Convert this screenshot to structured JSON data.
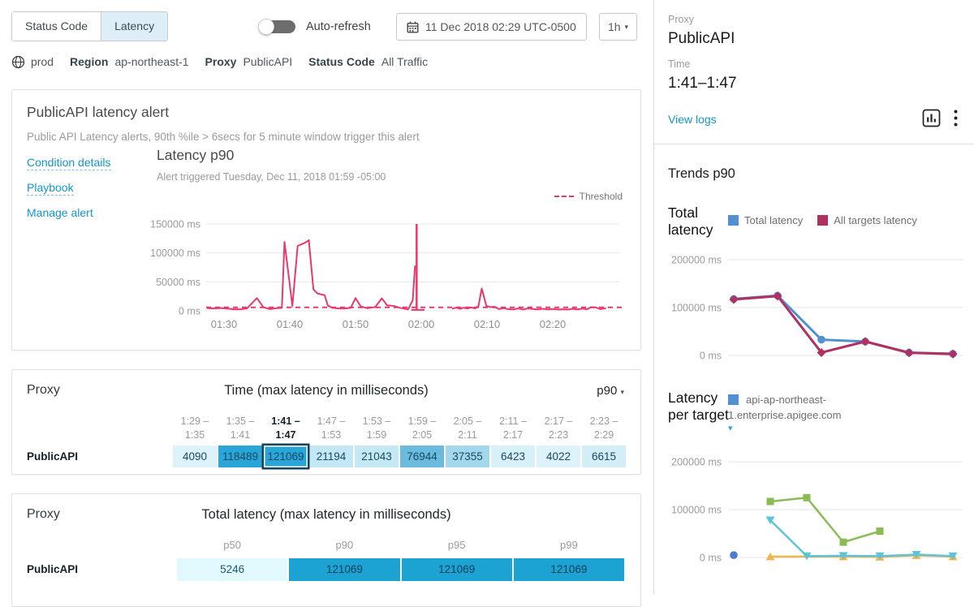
{
  "topbar": {
    "tabs": [
      {
        "label": "Status Code",
        "selected": false
      },
      {
        "label": "Latency",
        "selected": true
      }
    ],
    "auto_refresh_label": "Auto-refresh",
    "datetime": "11 Dec 2018 02:29 UTC-0500",
    "interval": "1h"
  },
  "breadcrumb": {
    "env": "prod",
    "items": [
      {
        "key": "Region",
        "value": "ap-northeast-1"
      },
      {
        "key": "Proxy",
        "value": "PublicAPI"
      },
      {
        "key": "Status Code",
        "value": "All Traffic"
      }
    ]
  },
  "alert_card": {
    "title": "PublicAPI latency alert",
    "description": "Public API Latency alerts, 90th %ile > 6secs for 5 minute window trigger this alert",
    "links": [
      {
        "label": "Condition details",
        "dashed": true
      },
      {
        "label": "Playbook",
        "dashed": true
      },
      {
        "label": "Manage alert",
        "dashed": false
      }
    ],
    "chart_title": "Latency p90",
    "chart_subtitle": "Alert triggered Tuesday, Dec 11, 2018 01:59 -05:00",
    "threshold_label": "Threshold"
  },
  "time_table": {
    "proxy_header": "Proxy",
    "title": "Time (max latency in milliseconds)",
    "percentile": "p90",
    "row_label": "PublicAPI",
    "columns": [
      {
        "top": "1:29 –",
        "bottom": "1:35",
        "value": "4090",
        "bg": "#ddf2fa",
        "selected": false
      },
      {
        "top": "1:35 –",
        "bottom": "1:41",
        "value": "118489",
        "bg": "#2aa5d8",
        "selected": false
      },
      {
        "top": "1:41 –",
        "bottom": "1:47",
        "value": "121069",
        "bg": "#2aa5d8",
        "selected": true
      },
      {
        "top": "1:47 –",
        "bottom": "1:53",
        "value": "21194",
        "bg": "#c3e7f4",
        "selected": false
      },
      {
        "top": "1:53 –",
        "bottom": "1:59",
        "value": "21043",
        "bg": "#c4e8f4",
        "selected": false
      },
      {
        "top": "1:59 –",
        "bottom": "2:05",
        "value": "76944",
        "bg": "#6bbbdf",
        "selected": false
      },
      {
        "top": "2:05 –",
        "bottom": "2:11",
        "value": "37355",
        "bg": "#a3d7eb",
        "selected": false
      },
      {
        "top": "2:11 –",
        "bottom": "2:17",
        "value": "6423",
        "bg": "#d8f0f8",
        "selected": false
      },
      {
        "top": "2:17 –",
        "bottom": "2:23",
        "value": "4022",
        "bg": "#ddf2fa",
        "selected": false
      },
      {
        "top": "2:23 –",
        "bottom": "2:29",
        "value": "6615",
        "bg": "#d3eef7",
        "selected": false
      }
    ]
  },
  "total_table": {
    "proxy_header": "Proxy",
    "title": "Total latency (max latency in milliseconds)",
    "row_label": "PublicAPI",
    "columns": [
      {
        "header": "p50",
        "value": "5246",
        "bg": "#e2f9fd",
        "text": "#1d5a75"
      },
      {
        "header": "p90",
        "value": "121069",
        "bg": "#1ca2d3",
        "text": "#0e3f58"
      },
      {
        "header": "p95",
        "value": "121069",
        "bg": "#1ca2d3",
        "text": "#0e3f58"
      },
      {
        "header": "p99",
        "value": "121069",
        "bg": "#1ca2d3",
        "text": "#0e3f58"
      }
    ]
  },
  "right_panel": {
    "proxy_label": "Proxy",
    "proxy_value": "PublicAPI",
    "time_label": "Time",
    "time_value": "1:41–1:47",
    "view_logs": "View logs",
    "trends_title": "Trends p90",
    "total_latency_label": "Total latency",
    "latency_per_target_label": "Latency per target"
  },
  "chart_data": [
    {
      "id": "alert_latency",
      "type": "line",
      "title": "Latency p90",
      "ylabel": "ms",
      "ylim": [
        0,
        150000
      ],
      "y_ticks": [
        {
          "v": 0,
          "label": "0 ms"
        },
        {
          "v": 50000,
          "label": "50000 ms"
        },
        {
          "v": 100000,
          "label": "100000 ms"
        },
        {
          "v": 150000,
          "label": "150000 ms"
        }
      ],
      "x_ticks": [
        {
          "m": 0,
          "label": "01:30"
        },
        {
          "m": 10,
          "label": "01:40"
        },
        {
          "m": 20,
          "label": "01:50"
        },
        {
          "m": 30,
          "label": "02:00"
        },
        {
          "m": 40,
          "label": "02:10"
        },
        {
          "m": 50,
          "label": "02:20"
        }
      ],
      "series_color": "#e8386d",
      "threshold_ms": 6000,
      "alert_marker_minute": 29.3,
      "segments": [
        [
          [
            -2.5,
            4500
          ],
          [
            -1.5,
            4000
          ],
          [
            -0.5,
            4800
          ],
          [
            0.5,
            3800
          ],
          [
            1.5,
            2600
          ],
          [
            2.5,
            2600
          ],
          [
            3.5,
            4200
          ],
          [
            5,
            22000
          ],
          [
            6,
            6000
          ],
          [
            7,
            3000
          ],
          [
            8,
            4500
          ],
          [
            8.8,
            5000
          ],
          [
            9.2,
            119000
          ],
          [
            10.4,
            8000
          ],
          [
            11.2,
            112000
          ],
          [
            12.4,
            118000
          ],
          [
            12.9,
            122000
          ],
          [
            13.6,
            37000
          ],
          [
            14.2,
            30000
          ],
          [
            15.3,
            27000
          ],
          [
            15.8,
            9000
          ],
          [
            16.5,
            5000
          ],
          [
            17.5,
            4000
          ],
          [
            18.5,
            4000
          ],
          [
            19.3,
            5500
          ],
          [
            20,
            22000
          ],
          [
            20.8,
            7500
          ],
          [
            21.8,
            4500
          ],
          [
            23,
            6500
          ],
          [
            24,
            21500
          ],
          [
            24.8,
            9500
          ],
          [
            25.8,
            8500
          ],
          [
            26.8,
            5000
          ],
          [
            28,
            2500
          ],
          [
            28.7,
            18000
          ],
          [
            29.05,
            77000
          ]
        ],
        [
          [
            34.8,
            3800
          ],
          [
            35.3,
            5500
          ],
          [
            35.9,
            3500
          ],
          [
            36.4,
            5200
          ],
          [
            37,
            4000
          ],
          [
            37.6,
            5800
          ],
          [
            38.2,
            4200
          ],
          [
            38.7,
            8000
          ],
          [
            39.2,
            38500
          ],
          [
            39.9,
            8500
          ],
          [
            40.5,
            6500
          ],
          [
            41.2,
            6800
          ],
          [
            41.8,
            3000
          ],
          [
            42.5,
            4500
          ],
          [
            43.2,
            3000
          ],
          [
            44,
            2500
          ],
          [
            44.8,
            4000
          ],
          [
            45.5,
            2200
          ],
          [
            46.2,
            4200
          ],
          [
            47,
            3000
          ],
          [
            47.8,
            2500
          ],
          [
            48.5,
            3500
          ],
          [
            49.2,
            2400
          ],
          [
            50,
            3200
          ],
          [
            50.8,
            2200
          ],
          [
            51.5,
            2600
          ],
          [
            52.2,
            2200
          ],
          [
            53,
            3400
          ],
          [
            53.8,
            2400
          ],
          [
            54.5,
            3800
          ],
          [
            55.2,
            2600
          ],
          [
            55.8,
            6300
          ],
          [
            56.5,
            6000
          ],
          [
            57.2,
            3000
          ],
          [
            58,
            4200
          ]
        ]
      ],
      "baseline_segment": [
        [
          28.5,
          1500
        ],
        [
          30.5,
          1500
        ]
      ]
    },
    {
      "id": "trend_total_latency",
      "type": "line",
      "ylim": [
        0,
        200000
      ],
      "y_ticks": [
        {
          "v": 0,
          "label": "0 ms"
        },
        {
          "v": 100000,
          "label": "100000 ms"
        },
        {
          "v": 200000,
          "label": "200000 ms"
        }
      ],
      "legend_position": "top",
      "series": [
        {
          "name": "Total latency",
          "color": "#5191d3",
          "marker": "circle",
          "points": [
            [
              0,
              118000
            ],
            [
              1,
              125000
            ],
            [
              2,
              33000
            ],
            [
              3,
              29000
            ],
            [
              4,
              6000
            ],
            [
              5,
              3500
            ]
          ]
        },
        {
          "name": "All targets latency",
          "color": "#b03063",
          "marker": "diamond",
          "points": [
            [
              0,
              117000
            ],
            [
              1,
              124000
            ],
            [
              2,
              6000
            ],
            [
              3,
              29000
            ],
            [
              4,
              5500
            ],
            [
              5,
              3000
            ]
          ]
        }
      ]
    },
    {
      "id": "trend_latency_per_target",
      "type": "line",
      "ylim": [
        0,
        200000
      ],
      "y_ticks": [
        {
          "v": 0,
          "label": "0 ms"
        },
        {
          "v": 100000,
          "label": "100000 ms"
        },
        {
          "v": 200000,
          "label": "200000 ms"
        }
      ],
      "legend_label": "api-ap-northeast-1.enterprise.apigee.com",
      "legend_color": "#5191d3",
      "series": [
        {
          "color": "#4c7bd0",
          "marker": "circle",
          "points": [
            [
              0,
              5000
            ]
          ]
        },
        {
          "color": "#f2b44e",
          "marker": "triangle-up",
          "points": [
            [
              1,
              2000
            ],
            [
              3,
              2000
            ],
            [
              4,
              1200
            ],
            [
              5,
              4500
            ],
            [
              6,
              2000
            ]
          ]
        },
        {
          "color": "#5fc3d8",
          "marker": "triangle-down",
          "points": [
            [
              1,
              78000
            ],
            [
              2,
              3000
            ],
            [
              3,
              3500
            ],
            [
              4,
              3000
            ],
            [
              5,
              6000
            ],
            [
              6,
              3000
            ]
          ]
        },
        {
          "color": "#8cba55",
          "marker": "square",
          "points": [
            [
              1,
              117000
            ],
            [
              2,
              125000
            ],
            [
              3,
              32000
            ],
            [
              4,
              55000
            ]
          ]
        }
      ]
    }
  ]
}
